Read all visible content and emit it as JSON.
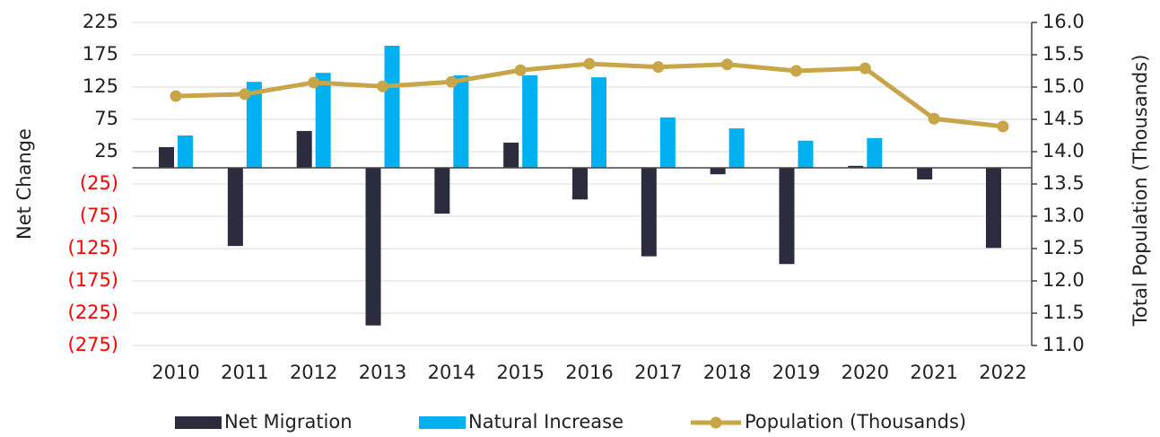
{
  "chart_data": {
    "type": "bar_line",
    "categories": [
      "2010",
      "2011",
      "2012",
      "2013",
      "2014",
      "2015",
      "2016",
      "2017",
      "2018",
      "2019",
      "2020",
      "2021",
      "2022"
    ],
    "series": [
      {
        "name": "Net Migration",
        "color": "#2b2d3e",
        "type": "bar",
        "values": [
          32,
          -121,
          57,
          -244,
          -71,
          39,
          -49,
          -137,
          -10,
          -149,
          3,
          -18,
          -124
        ]
      },
      {
        "name": "Natural Increase",
        "color": "#00b0f0",
        "type": "bar",
        "values": [
          50,
          133,
          147,
          189,
          143,
          143,
          140,
          78,
          61,
          42,
          46,
          null,
          null
        ]
      },
      {
        "name": "Population (Thousands)",
        "color": "#c9a54a",
        "type": "line",
        "axis": "y2",
        "values": [
          14.86,
          14.89,
          15.07,
          15.01,
          15.08,
          15.26,
          15.36,
          15.31,
          15.35,
          15.25,
          15.29,
          14.51,
          14.39
        ]
      }
    ],
    "ylabel": "Net Change",
    "y2label": "Total Population (Thousands)",
    "ylim": [
      -275,
      225
    ],
    "yticks": [
      225,
      175,
      125,
      75,
      25,
      {
        "value": -25,
        "label": "(25)"
      },
      {
        "value": -75,
        "label": "(75)"
      },
      {
        "value": -125,
        "label": "(125)"
      },
      {
        "value": -175,
        "label": "(175)"
      },
      {
        "value": -225,
        "label": "(225)"
      },
      {
        "value": -275,
        "label": "(275)"
      }
    ],
    "negative_label_color": "#ff0000",
    "y2lim": [
      11,
      16
    ],
    "y2ticks": [
      {
        "value": 16,
        "label": "16.0"
      },
      15.5,
      {
        "value": 15,
        "label": "15.0"
      },
      14.5,
      {
        "value": 14,
        "label": "14.0"
      },
      13.5,
      {
        "value": 13,
        "label": "13.0"
      },
      12.5,
      {
        "value": 12,
        "label": "12.0"
      },
      11.5,
      {
        "value": 11,
        "label": "11.0"
      }
    ],
    "grid": true,
    "legend": "bottom"
  }
}
